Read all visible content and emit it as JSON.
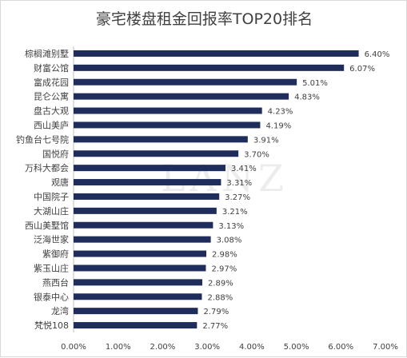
{
  "chart_data": {
    "type": "bar",
    "orientation": "horizontal",
    "title": "豪宅楼盘租金回报率TOP20排名",
    "categories": [
      "棕榈滩别墅",
      "财富公馆",
      "富成花园",
      "昆仑公寓",
      "盘古大观",
      "西山美庐",
      "钓鱼台七号院",
      "国悦府",
      "万科大都会",
      "观唐",
      "中国院子",
      "大湖山庄",
      "西山美墅馆",
      "泛海世家",
      "紫御府",
      "紫玉山庄",
      "燕西台",
      "银泰中心",
      "龙湾",
      "梵悦108"
    ],
    "values": [
      6.4,
      6.07,
      5.01,
      4.83,
      4.23,
      4.19,
      3.91,
      3.7,
      3.41,
      3.31,
      3.27,
      3.21,
      3.13,
      3.08,
      2.98,
      2.97,
      2.89,
      2.88,
      2.79,
      2.77
    ],
    "value_labels": [
      "6.40%",
      "6.07%",
      "5.01%",
      "4.83%",
      "4.23%",
      "4.19%",
      "3.91%",
      "3.70%",
      "3.41%",
      "3.31%",
      "3.27%",
      "3.21%",
      "3.13%",
      "3.08%",
      "2.98%",
      "2.97%",
      "2.89%",
      "2.88%",
      "2.79%",
      "2.77%"
    ],
    "xlim": [
      0,
      7
    ],
    "xticks": [
      0,
      1,
      2,
      3,
      4,
      5,
      6,
      7
    ],
    "xtick_labels": [
      "0.00%",
      "1.00%",
      "2.00%",
      "3.00%",
      "4.00%",
      "5.00%",
      "6.00%",
      "7.00%"
    ],
    "grid": false,
    "bar_color": "#1f2d5c"
  },
  "watermark": "LANZ"
}
